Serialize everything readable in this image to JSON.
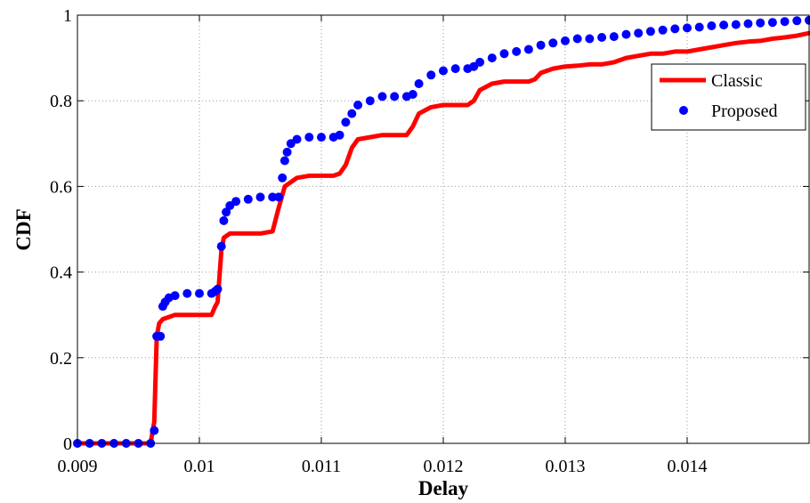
{
  "chart_data": {
    "type": "line",
    "title": "",
    "xlabel": "Delay",
    "ylabel": "CDF",
    "xlim": [
      0.009,
      0.015
    ],
    "ylim": [
      0,
      1
    ],
    "xticks": [
      0.009,
      0.01,
      0.011,
      0.012,
      0.013,
      0.014
    ],
    "xtick_labels": [
      "0.009",
      "0.01",
      "0.011",
      "0.012",
      "0.013",
      "0.014"
    ],
    "yticks": [
      0,
      0.2,
      0.4,
      0.6,
      0.8,
      1
    ],
    "ytick_labels": [
      "0",
      "0.2",
      "0.4",
      "0.6",
      "0.8",
      "1"
    ],
    "grid": true,
    "legend_position": "top-right",
    "series": [
      {
        "name": "Classic",
        "style": "line",
        "color": "#ff0000",
        "x": [
          0.009,
          0.0096,
          0.00963,
          0.00965,
          0.00967,
          0.0097,
          0.00975,
          0.0098,
          0.0099,
          0.01,
          0.0101,
          0.01013,
          0.01015,
          0.01018,
          0.0102,
          0.01025,
          0.0103,
          0.0104,
          0.0105,
          0.0106,
          0.01065,
          0.01068,
          0.0107,
          0.01075,
          0.0108,
          0.0109,
          0.011,
          0.0111,
          0.01115,
          0.0112,
          0.01125,
          0.0113,
          0.0114,
          0.0115,
          0.0116,
          0.0117,
          0.01175,
          0.0118,
          0.0119,
          0.012,
          0.0121,
          0.0122,
          0.01225,
          0.0123,
          0.0124,
          0.0125,
          0.0126,
          0.0127,
          0.01275,
          0.0128,
          0.0129,
          0.013,
          0.0131,
          0.0132,
          0.0133,
          0.0134,
          0.0135,
          0.0136,
          0.0137,
          0.0138,
          0.0139,
          0.014,
          0.0141,
          0.0142,
          0.0143,
          0.0144,
          0.0145,
          0.0146,
          0.0147,
          0.0148,
          0.0149,
          0.015
        ],
        "y": [
          0,
          0,
          0.05,
          0.25,
          0.28,
          0.29,
          0.295,
          0.3,
          0.3,
          0.3,
          0.3,
          0.32,
          0.33,
          0.45,
          0.48,
          0.49,
          0.49,
          0.49,
          0.49,
          0.495,
          0.55,
          0.58,
          0.6,
          0.61,
          0.62,
          0.625,
          0.625,
          0.625,
          0.63,
          0.65,
          0.69,
          0.71,
          0.715,
          0.72,
          0.72,
          0.72,
          0.74,
          0.77,
          0.785,
          0.79,
          0.79,
          0.79,
          0.8,
          0.825,
          0.84,
          0.845,
          0.845,
          0.845,
          0.85,
          0.865,
          0.875,
          0.88,
          0.882,
          0.885,
          0.885,
          0.89,
          0.9,
          0.905,
          0.91,
          0.91,
          0.915,
          0.915,
          0.92,
          0.925,
          0.93,
          0.935,
          0.938,
          0.94,
          0.945,
          0.948,
          0.952,
          0.958
        ]
      },
      {
        "name": "Proposed",
        "style": "markers",
        "color": "#0000ff",
        "x": [
          0.009,
          0.0091,
          0.0092,
          0.0093,
          0.0094,
          0.0095,
          0.0096,
          0.00963,
          0.00965,
          0.00968,
          0.0097,
          0.00972,
          0.00975,
          0.0098,
          0.0099,
          0.01,
          0.0101,
          0.01013,
          0.01015,
          0.01018,
          0.0102,
          0.01022,
          0.01025,
          0.0103,
          0.0104,
          0.0105,
          0.0106,
          0.01065,
          0.01068,
          0.0107,
          0.01072,
          0.01075,
          0.0108,
          0.0109,
          0.011,
          0.0111,
          0.01115,
          0.0112,
          0.01125,
          0.0113,
          0.0114,
          0.0115,
          0.0116,
          0.0117,
          0.01175,
          0.0118,
          0.0119,
          0.012,
          0.0121,
          0.0122,
          0.01225,
          0.0123,
          0.0124,
          0.0125,
          0.0126,
          0.0127,
          0.0128,
          0.0129,
          0.013,
          0.0131,
          0.0132,
          0.0133,
          0.0134,
          0.0135,
          0.0136,
          0.0137,
          0.0138,
          0.0139,
          0.014,
          0.0141,
          0.0142,
          0.0143,
          0.0144,
          0.0145,
          0.0146,
          0.0147,
          0.0148,
          0.0149,
          0.015
        ],
        "y": [
          0,
          0,
          0,
          0,
          0,
          0,
          0,
          0.03,
          0.25,
          0.25,
          0.32,
          0.33,
          0.34,
          0.345,
          0.35,
          0.35,
          0.35,
          0.355,
          0.36,
          0.46,
          0.52,
          0.54,
          0.555,
          0.565,
          0.57,
          0.575,
          0.575,
          0.575,
          0.62,
          0.66,
          0.68,
          0.7,
          0.71,
          0.715,
          0.715,
          0.715,
          0.72,
          0.75,
          0.77,
          0.79,
          0.8,
          0.81,
          0.81,
          0.81,
          0.815,
          0.84,
          0.86,
          0.87,
          0.875,
          0.875,
          0.88,
          0.89,
          0.9,
          0.91,
          0.915,
          0.92,
          0.93,
          0.935,
          0.94,
          0.945,
          0.945,
          0.948,
          0.95,
          0.955,
          0.958,
          0.962,
          0.965,
          0.968,
          0.97,
          0.972,
          0.975,
          0.977,
          0.978,
          0.98,
          0.982,
          0.983,
          0.985,
          0.987,
          0.988
        ]
      }
    ]
  }
}
